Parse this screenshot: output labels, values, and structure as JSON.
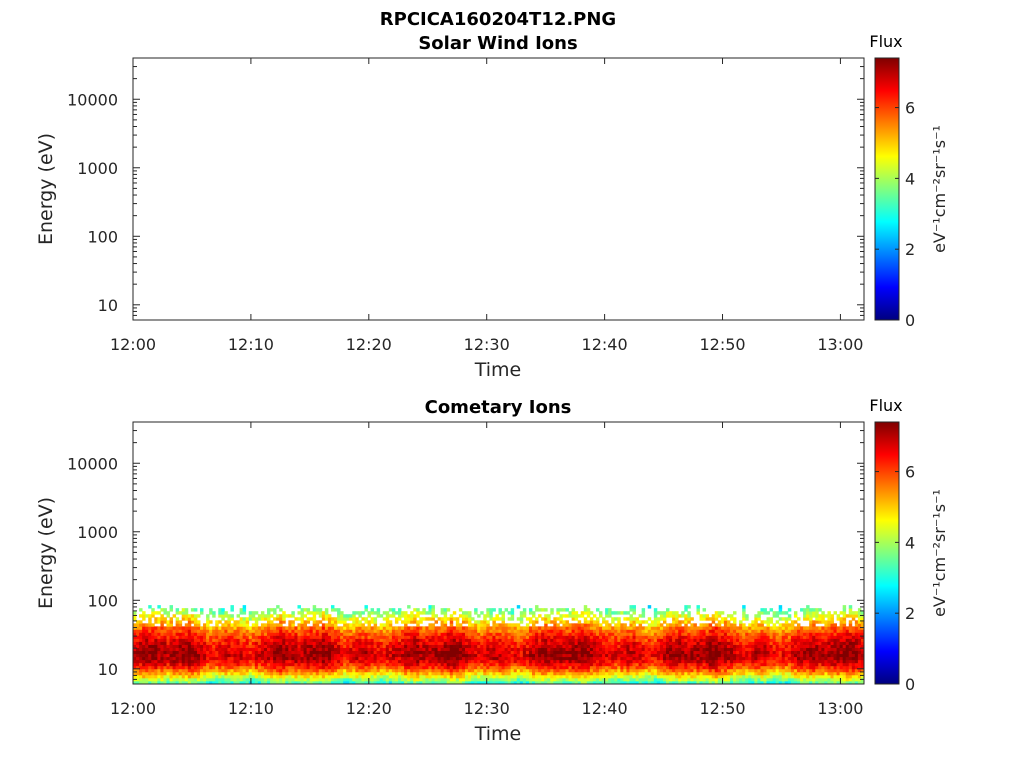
{
  "figure": {
    "title": "RPCICA160204T12.PNG"
  },
  "chart_data": [
    {
      "type": "heatmap",
      "title": "Solar Wind Ions",
      "xlabel": "Time",
      "ylabel": "Energy (eV)",
      "x_ticks": [
        "12:00",
        "12:10",
        "12:20",
        "12:30",
        "12:40",
        "12:50",
        "13:00"
      ],
      "x_range_minutes": [
        0,
        62
      ],
      "y_scale": "log",
      "y_ticks": [
        {
          "label": "10",
          "value": 10
        },
        {
          "label": "100",
          "value": 100
        },
        {
          "label": "1000",
          "value": 1000
        },
        {
          "label": "10000",
          "value": 10000
        }
      ],
      "y_range": [
        6,
        40000
      ],
      "colorbar": {
        "title": "Flux",
        "label": "eV⁻¹cm⁻²sr⁻¹s⁻¹",
        "range": [
          0,
          7.4
        ],
        "ticks": [
          "0",
          "2",
          "4",
          "6"
        ],
        "colormap": "jet"
      },
      "data_description": "empty"
    },
    {
      "type": "heatmap",
      "title": "Cometary Ions",
      "xlabel": "Time",
      "ylabel": "Energy (eV)",
      "x_ticks": [
        "12:00",
        "12:10",
        "12:20",
        "12:30",
        "12:40",
        "12:50",
        "13:00"
      ],
      "x_range_minutes": [
        0,
        62
      ],
      "y_scale": "log",
      "y_ticks": [
        {
          "label": "10",
          "value": 10
        },
        {
          "label": "100",
          "value": 100
        },
        {
          "label": "1000",
          "value": 1000
        },
        {
          "label": "10000",
          "value": 10000
        }
      ],
      "y_range": [
        6,
        40000
      ],
      "colorbar": {
        "title": "Flux",
        "label": "eV⁻¹cm⁻²sr⁻¹s⁻¹",
        "range": [
          0,
          7.4
        ],
        "ticks": [
          "0",
          "2",
          "4",
          "6"
        ],
        "colormap": "jet"
      },
      "energy_band": {
        "min_ev": 6,
        "max_ev": 85,
        "peak_ev": 16,
        "peak_flux": 7.0,
        "edge_flux": 3.0
      }
    }
  ]
}
